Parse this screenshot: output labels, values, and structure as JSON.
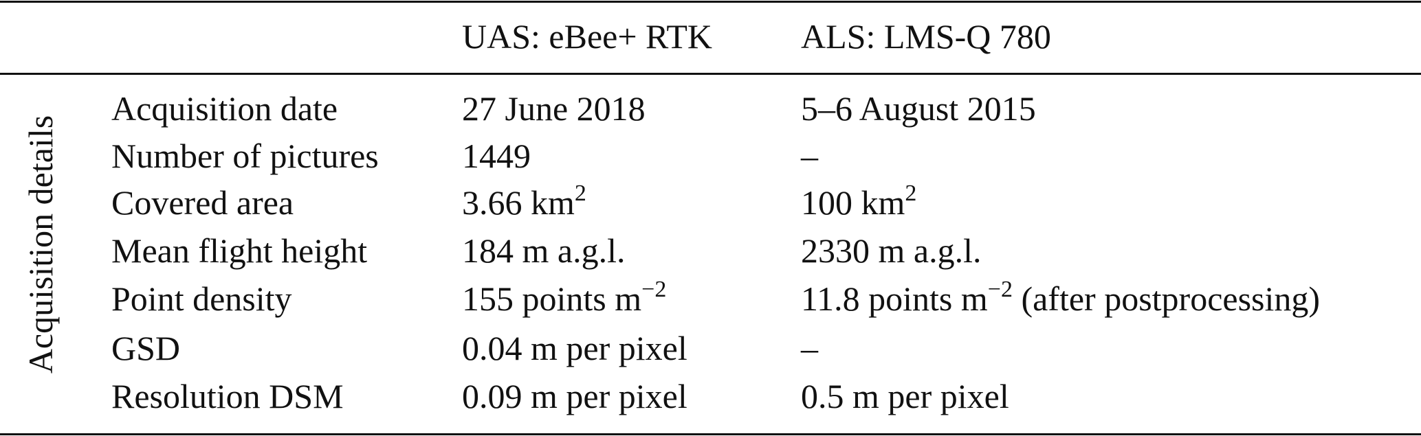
{
  "table": {
    "columns": [
      "UAS: eBee+ RTK",
      "ALS: LMS-Q 780"
    ],
    "group": "Acquisition details",
    "rows": [
      [
        "Acquisition date",
        "27 June 2018",
        "5–6 August 2015"
      ],
      [
        "Number of pictures",
        "1449",
        "–"
      ],
      [
        "Covered area",
        {
          "text": "3.66 km",
          "sup": "2"
        },
        {
          "text": "100 km",
          "sup": "2"
        }
      ],
      [
        "Mean flight height",
        "184 m a.g.l.",
        "2330 m a.g.l."
      ],
      [
        "Point density",
        {
          "text": "155 points m",
          "sup": "−2"
        },
        {
          "text": "11.8 points m",
          "sup": "−2",
          "after": " (after postprocessing)"
        }
      ],
      [
        "GSD",
        "0.04 m per pixel",
        "–"
      ],
      [
        "Resolution DSM",
        "0.09 m per pixel",
        "0.5 m per pixel"
      ]
    ]
  }
}
